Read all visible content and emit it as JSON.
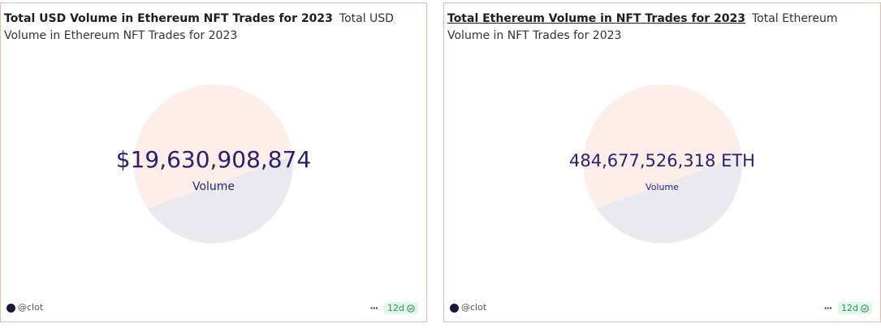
{
  "widgets": [
    {
      "title": "Total USD Volume in Ethereum NFT Trades for 2023",
      "subtitle": "Total USD Volume in Ethereum NFT Trades for 2023",
      "value": "$19,630,908,874",
      "label": "Volume",
      "author": "@clot",
      "menu": "···",
      "age": "12d"
    },
    {
      "title": "Total Ethereum Volume in NFT Trades for 2023",
      "subtitle": "Total Ethereum Volume in NFT Trades for 2023",
      "value": "484,677,526,318 ETH",
      "label": "Volume",
      "author": "@clot",
      "menu": "···",
      "age": "12d"
    }
  ]
}
